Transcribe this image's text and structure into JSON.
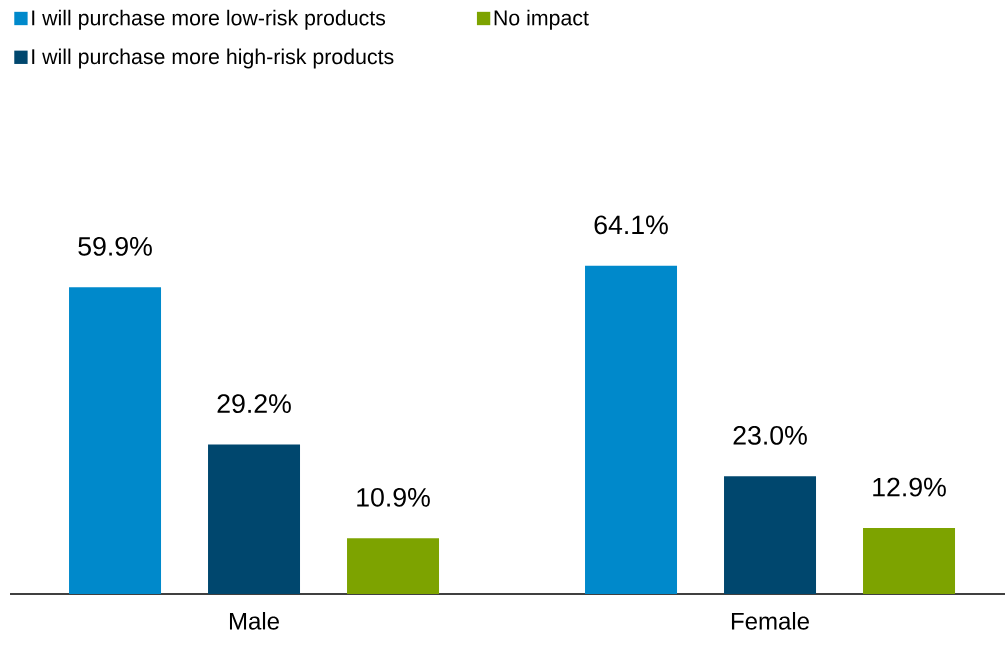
{
  "chart_data": {
    "type": "bar",
    "categories": [
      "Male",
      "Female"
    ],
    "series": [
      {
        "name": "I will purchase more low-risk products",
        "color": "#0089cb",
        "values": [
          59.9,
          64.1
        ],
        "value_labels": [
          "59.9%",
          "64.1%"
        ]
      },
      {
        "name": "I will purchase more high-risk products",
        "color": "#00476e",
        "values": [
          29.2,
          23.0
        ],
        "value_labels": [
          "29.2%",
          "23.0%"
        ]
      },
      {
        "name": "No impact",
        "color": "#7da300",
        "values": [
          10.9,
          12.9
        ],
        "value_labels": [
          "10.9%",
          "12.9%"
        ]
      }
    ],
    "legend": "top left"
  }
}
